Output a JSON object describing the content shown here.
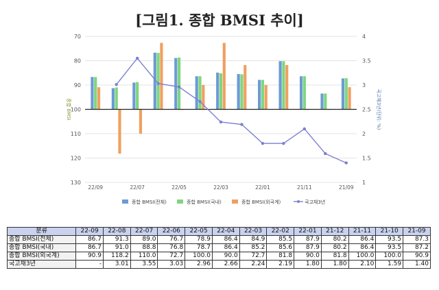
{
  "title": "[그림1. 종합 BMSI 추이]",
  "chart_data": {
    "type": "bar",
    "categories": [
      "22-09",
      "22-08",
      "22-07",
      "22-06",
      "22-05",
      "22-04",
      "22-03",
      "22-02",
      "22-01",
      "21-12",
      "21-11",
      "21-10",
      "21-09"
    ],
    "x_tick_labels": [
      "22/09",
      "22/07",
      "22/05",
      "22/03",
      "22/01",
      "21/11",
      "21/09"
    ],
    "ylabel": "종합 BMSI",
    "y2label": "국고채3년(단위: %)",
    "ylim": [
      130,
      70
    ],
    "y_ticks": [
      70,
      80,
      90,
      100,
      110,
      120,
      130
    ],
    "y2lim": [
      1,
      4
    ],
    "y2_ticks": [
      1,
      1.5,
      2,
      2.5,
      3,
      3.5,
      4
    ],
    "baseline": 100,
    "grid": true,
    "legend_position": "bottom",
    "series": [
      {
        "name": "종합 BMSI(전체)",
        "type": "bar",
        "color": "#6c9bd2",
        "values": [
          86.7,
          91.3,
          89.0,
          76.7,
          78.9,
          86.4,
          84.9,
          85.5,
          87.9,
          80.2,
          86.4,
          93.5,
          87.3
        ]
      },
      {
        "name": "종합 BMSI(국내)",
        "type": "bar",
        "color": "#7fd67f",
        "values": [
          86.7,
          91.0,
          88.8,
          76.8,
          78.7,
          86.4,
          85.2,
          85.6,
          87.9,
          80.2,
          86.4,
          93.5,
          87.2
        ]
      },
      {
        "name": "종합 BMSI(외국계)",
        "type": "bar",
        "color": "#f0a060",
        "values": [
          90.9,
          118.2,
          110.0,
          72.7,
          100.0,
          90.0,
          72.7,
          81.8,
          90.0,
          81.8,
          100.0,
          100.0,
          90.9
        ]
      },
      {
        "name": "국고채3년",
        "type": "line",
        "axis": "right",
        "color": "#7b7fd0",
        "values": [
          null,
          3.01,
          3.55,
          3.03,
          2.96,
          2.66,
          2.24,
          2.19,
          1.8,
          1.8,
          2.1,
          1.59,
          1.4
        ]
      }
    ]
  },
  "table": {
    "header_label": "분류",
    "columns": [
      "22-09",
      "22-08",
      "22-07",
      "22-06",
      "22-05",
      "22-04",
      "22-03",
      "22-02",
      "22-01",
      "21-12",
      "21-11",
      "21-10",
      "21-09"
    ],
    "rows": [
      {
        "label": "종합 BMSI(전체)",
        "cells": [
          "86.7",
          "91.3",
          "89.0",
          "76.7",
          "78.9",
          "86.4",
          "84.9",
          "85.5",
          "87.9",
          "80.2",
          "86.4",
          "93.5",
          "87.3"
        ]
      },
      {
        "label": "종합 BMSI(국내)",
        "cells": [
          "86.7",
          "91.0",
          "88.8",
          "76.8",
          "78.7",
          "86.4",
          "85.2",
          "85.6",
          "87.9",
          "80.2",
          "86.4",
          "93.5",
          "87.2"
        ]
      },
      {
        "label": "종합 BMSI(외국계)",
        "cells": [
          "90.9",
          "118.2",
          "110.0",
          "72.7",
          "100.0",
          "90.0",
          "72.7",
          "81.8",
          "90.0",
          "81.8",
          "100.0",
          "100.0",
          "90.9"
        ]
      },
      {
        "label": "국고채3년",
        "cells": [
          "-",
          "3.01",
          "3.55",
          "3.03",
          "2.96",
          "2.66",
          "2.24",
          "2.19",
          "1.80",
          "1.80",
          "2.10",
          "1.59",
          "1.40"
        ]
      }
    ]
  }
}
